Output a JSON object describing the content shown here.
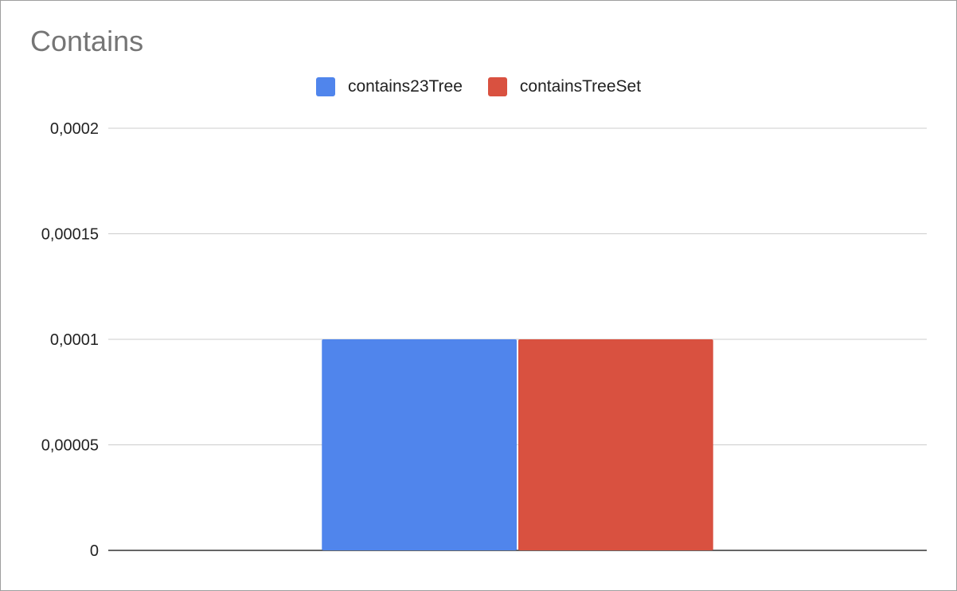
{
  "chart_data": {
    "type": "bar",
    "title": "Contains",
    "categories": [
      ""
    ],
    "series": [
      {
        "name": "contains23Tree",
        "values": [
          0.0001
        ],
        "color": "#5085ec"
      },
      {
        "name": "containsTreeSet",
        "values": [
          0.0001
        ],
        "color": "#d95140"
      }
    ],
    "ylim": [
      0,
      0.0002
    ],
    "yticks": [
      0,
      5e-05,
      0.0001,
      0.00015,
      0.0002
    ],
    "ytick_labels": [
      "0",
      "0,00005",
      "0,0001",
      "0,00015",
      "0,0002"
    ],
    "legend_position": "top",
    "grid": true
  }
}
